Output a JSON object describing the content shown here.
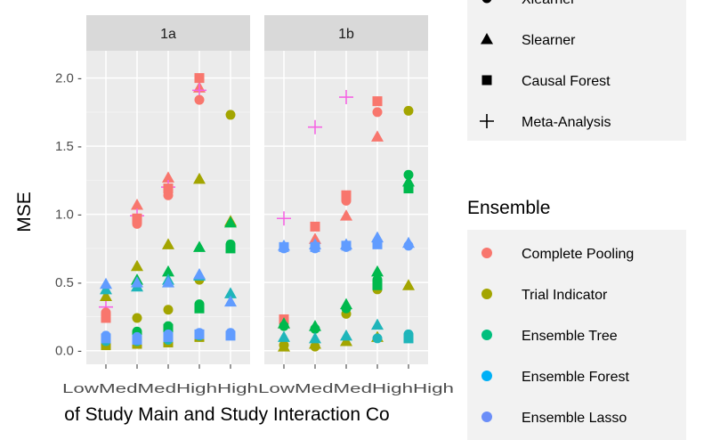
{
  "chart_data": {
    "type": "scatter",
    "ylabel": "MSE",
    "xlabel": "of Study Main and Study Interaction Co",
    "ylim": [
      -0.1,
      2.2
    ],
    "yticks": [
      0.0,
      0.5,
      1.0,
      1.5,
      2.0
    ],
    "ytick_labels": [
      "0.0 -",
      "0.5 -",
      "1.0 -",
      "1.5 -",
      "2.0 -"
    ],
    "x_tick_labels": [
      "Low",
      "Med",
      "Med",
      "High",
      "High",
      "Low",
      "Med",
      "Med",
      "High",
      "High"
    ],
    "x_tick_text": "LowMedMedHighHighLowMedMedHighHigh",
    "grid": true,
    "panels": [
      {
        "name": "1a",
        "points": [
          {
            "x": 1,
            "y": 0.32,
            "color": "Complete Pooling",
            "shape": "Meta-Analysis"
          },
          {
            "x": 1,
            "y": 0.28,
            "color": "Complete Pooling",
            "shape": "Xlearner"
          },
          {
            "x": 1,
            "y": 0.24,
            "color": "Complete Pooling",
            "shape": "Causal Forest"
          },
          {
            "x": 1,
            "y": 0.4,
            "color": "Trial Indicator",
            "shape": "Slearner"
          },
          {
            "x": 1,
            "y": 0.04,
            "color": "Trial Indicator",
            "shape": "Causal Forest"
          },
          {
            "x": 1,
            "y": 0.45,
            "color": "Ensemble Forest",
            "shape": "Slearner"
          },
          {
            "x": 1,
            "y": 0.07,
            "color": "Ensemble Forest",
            "shape": "Xlearner"
          },
          {
            "x": 1,
            "y": 0.49,
            "color": "Ensemble Lasso",
            "shape": "Slearner"
          },
          {
            "x": 1,
            "y": 0.11,
            "color": "Ensemble Lasso",
            "shape": "Xlearner"
          },
          {
            "x": 1,
            "y": 0.09,
            "color": "Ensemble Lasso",
            "shape": "Causal Forest"
          },
          {
            "x": 2,
            "y": 1.07,
            "color": "Complete Pooling",
            "shape": "Slearner"
          },
          {
            "x": 2,
            "y": 0.99,
            "color": "Complete Pooling",
            "shape": "Meta-Analysis"
          },
          {
            "x": 2,
            "y": 0.97,
            "color": "Complete Pooling",
            "shape": "Causal Forest"
          },
          {
            "x": 2,
            "y": 0.93,
            "color": "Complete Pooling",
            "shape": "Xlearner"
          },
          {
            "x": 2,
            "y": 0.62,
            "color": "Trial Indicator",
            "shape": "Slearner"
          },
          {
            "x": 2,
            "y": 0.24,
            "color": "Trial Indicator",
            "shape": "Xlearner"
          },
          {
            "x": 2,
            "y": 0.05,
            "color": "Trial Indicator",
            "shape": "Causal Forest"
          },
          {
            "x": 2,
            "y": 0.52,
            "color": "Ensemble Tree",
            "shape": "Slearner"
          },
          {
            "x": 2,
            "y": 0.14,
            "color": "Ensemble Tree",
            "shape": "Xlearner"
          },
          {
            "x": 2,
            "y": 0.11,
            "color": "Ensemble Tree",
            "shape": "Causal Forest"
          },
          {
            "x": 2,
            "y": 0.47,
            "color": "Ensemble Forest",
            "shape": "Slearner"
          },
          {
            "x": 2,
            "y": 0.07,
            "color": "Ensemble Forest",
            "shape": "Xlearner"
          },
          {
            "x": 2,
            "y": 0.5,
            "color": "Ensemble Lasso",
            "shape": "Slearner"
          },
          {
            "x": 2,
            "y": 0.1,
            "color": "Ensemble Lasso",
            "shape": "Xlearner"
          },
          {
            "x": 2,
            "y": 0.08,
            "color": "Ensemble Lasso",
            "shape": "Causal Forest"
          },
          {
            "x": 3,
            "y": 1.27,
            "color": "Complete Pooling",
            "shape": "Slearner"
          },
          {
            "x": 3,
            "y": 1.2,
            "color": "Complete Pooling",
            "shape": "Meta-Analysis"
          },
          {
            "x": 3,
            "y": 1.19,
            "color": "Complete Pooling",
            "shape": "Causal Forest"
          },
          {
            "x": 3,
            "y": 1.14,
            "color": "Complete Pooling",
            "shape": "Xlearner"
          },
          {
            "x": 3,
            "y": 0.78,
            "color": "Trial Indicator",
            "shape": "Slearner"
          },
          {
            "x": 3,
            "y": 0.3,
            "color": "Trial Indicator",
            "shape": "Xlearner"
          },
          {
            "x": 3,
            "y": 0.06,
            "color": "Trial Indicator",
            "shape": "Causal Forest"
          },
          {
            "x": 3,
            "y": 0.58,
            "color": "Ensemble Tree",
            "shape": "Slearner"
          },
          {
            "x": 3,
            "y": 0.18,
            "color": "Ensemble Tree",
            "shape": "Xlearner"
          },
          {
            "x": 3,
            "y": 0.16,
            "color": "Ensemble Tree",
            "shape": "Causal Forest"
          },
          {
            "x": 3,
            "y": 0.52,
            "color": "Ensemble Forest",
            "shape": "Slearner"
          },
          {
            "x": 3,
            "y": 0.08,
            "color": "Ensemble Forest",
            "shape": "Xlearner"
          },
          {
            "x": 3,
            "y": 0.5,
            "color": "Ensemble Lasso",
            "shape": "Slearner"
          },
          {
            "x": 3,
            "y": 0.12,
            "color": "Ensemble Lasso",
            "shape": "Xlearner"
          },
          {
            "x": 3,
            "y": 0.1,
            "color": "Ensemble Lasso",
            "shape": "Causal Forest"
          },
          {
            "x": 4,
            "y": 2.0,
            "color": "Complete Pooling",
            "shape": "Causal Forest"
          },
          {
            "x": 4,
            "y": 1.93,
            "color": "Complete Pooling",
            "shape": "Slearner"
          },
          {
            "x": 4,
            "y": 1.91,
            "color": "Complete Pooling",
            "shape": "Meta-Analysis"
          },
          {
            "x": 4,
            "y": 1.84,
            "color": "Complete Pooling",
            "shape": "Xlearner"
          },
          {
            "x": 4,
            "y": 1.26,
            "color": "Trial Indicator",
            "shape": "Slearner"
          },
          {
            "x": 4,
            "y": 0.52,
            "color": "Trial Indicator",
            "shape": "Xlearner"
          },
          {
            "x": 4,
            "y": 0.1,
            "color": "Trial Indicator",
            "shape": "Causal Forest"
          },
          {
            "x": 4,
            "y": 0.76,
            "color": "Ensemble Tree",
            "shape": "Slearner"
          },
          {
            "x": 4,
            "y": 0.34,
            "color": "Ensemble Tree",
            "shape": "Xlearner"
          },
          {
            "x": 4,
            "y": 0.31,
            "color": "Ensemble Tree",
            "shape": "Causal Forest"
          },
          {
            "x": 4,
            "y": 0.55,
            "color": "Ensemble Forest",
            "shape": "Slearner"
          },
          {
            "x": 4,
            "y": 0.11,
            "color": "Ensemble Forest",
            "shape": "Xlearner"
          },
          {
            "x": 4,
            "y": 0.56,
            "color": "Ensemble Lasso",
            "shape": "Slearner"
          },
          {
            "x": 4,
            "y": 0.13,
            "color": "Ensemble Lasso",
            "shape": "Xlearner"
          },
          {
            "x": 4,
            "y": 0.12,
            "color": "Ensemble Lasso",
            "shape": "Causal Forest"
          },
          {
            "x": 5,
            "y": 1.73,
            "color": "Trial Indicator",
            "shape": "Xlearner"
          },
          {
            "x": 5,
            "y": 0.95,
            "color": "Trial Indicator",
            "shape": "Slearner"
          },
          {
            "x": 5,
            "y": 0.94,
            "color": "Ensemble Tree",
            "shape": "Slearner"
          },
          {
            "x": 5,
            "y": 0.78,
            "color": "Ensemble Tree",
            "shape": "Xlearner"
          },
          {
            "x": 5,
            "y": 0.75,
            "color": "Ensemble Tree",
            "shape": "Causal Forest"
          },
          {
            "x": 5,
            "y": 0.42,
            "color": "Ensemble Forest",
            "shape": "Slearner"
          },
          {
            "x": 5,
            "y": 0.12,
            "color": "Ensemble Forest",
            "shape": "Xlearner"
          },
          {
            "x": 5,
            "y": 0.36,
            "color": "Ensemble Lasso",
            "shape": "Slearner"
          },
          {
            "x": 5,
            "y": 0.13,
            "color": "Ensemble Lasso",
            "shape": "Xlearner"
          },
          {
            "x": 5,
            "y": 0.11,
            "color": "Ensemble Lasso",
            "shape": "Causal Forest"
          }
        ]
      },
      {
        "name": "1b",
        "points": [
          {
            "x": 1,
            "y": 0.97,
            "color": "Complete Pooling",
            "shape": "Meta-Analysis"
          },
          {
            "x": 1,
            "y": 0.23,
            "color": "Complete Pooling",
            "shape": "Causal Forest"
          },
          {
            "x": 1,
            "y": 0.2,
            "color": "Complete Pooling",
            "shape": "Slearner"
          },
          {
            "x": 1,
            "y": 0.03,
            "color": "Trial Indicator",
            "shape": "Slearner"
          },
          {
            "x": 1,
            "y": 0.04,
            "color": "Trial Indicator",
            "shape": "Xlearner"
          },
          {
            "x": 1,
            "y": 0.2,
            "color": "Ensemble Tree",
            "shape": "Slearner"
          },
          {
            "x": 1,
            "y": 0.18,
            "color": "Ensemble Tree",
            "shape": "Xlearner"
          },
          {
            "x": 1,
            "y": 0.1,
            "color": "Ensemble Forest",
            "shape": "Slearner"
          },
          {
            "x": 1,
            "y": 0.77,
            "color": "Ensemble Lasso",
            "shape": "Slearner"
          },
          {
            "x": 1,
            "y": 0.75,
            "color": "Ensemble Lasso",
            "shape": "Xlearner"
          },
          {
            "x": 1,
            "y": 0.76,
            "color": "Ensemble Lasso",
            "shape": "Causal Forest"
          },
          {
            "x": 2,
            "y": 1.64,
            "color": "Complete Pooling",
            "shape": "Meta-Analysis"
          },
          {
            "x": 2,
            "y": 0.91,
            "color": "Complete Pooling",
            "shape": "Causal Forest"
          },
          {
            "x": 2,
            "y": 0.82,
            "color": "Complete Pooling",
            "shape": "Slearner"
          },
          {
            "x": 2,
            "y": 0.79,
            "color": "Complete Pooling",
            "shape": "Xlearner"
          },
          {
            "x": 2,
            "y": 0.05,
            "color": "Trial Indicator",
            "shape": "Slearner"
          },
          {
            "x": 2,
            "y": 0.03,
            "color": "Trial Indicator",
            "shape": "Xlearner"
          },
          {
            "x": 2,
            "y": 0.18,
            "color": "Ensemble Tree",
            "shape": "Slearner"
          },
          {
            "x": 2,
            "y": 0.16,
            "color": "Ensemble Tree",
            "shape": "Xlearner"
          },
          {
            "x": 2,
            "y": 0.09,
            "color": "Ensemble Forest",
            "shape": "Slearner"
          },
          {
            "x": 2,
            "y": 0.78,
            "color": "Ensemble Lasso",
            "shape": "Slearner"
          },
          {
            "x": 2,
            "y": 0.75,
            "color": "Ensemble Lasso",
            "shape": "Xlearner"
          },
          {
            "x": 2,
            "y": 0.76,
            "color": "Ensemble Lasso",
            "shape": "Causal Forest"
          },
          {
            "x": 3,
            "y": 1.86,
            "color": "Complete Pooling",
            "shape": "Meta-Analysis"
          },
          {
            "x": 3,
            "y": 1.14,
            "color": "Complete Pooling",
            "shape": "Causal Forest"
          },
          {
            "x": 3,
            "y": 1.1,
            "color": "Complete Pooling",
            "shape": "Xlearner"
          },
          {
            "x": 3,
            "y": 0.99,
            "color": "Complete Pooling",
            "shape": "Slearner"
          },
          {
            "x": 3,
            "y": 0.27,
            "color": "Trial Indicator",
            "shape": "Xlearner"
          },
          {
            "x": 3,
            "y": 0.07,
            "color": "Trial Indicator",
            "shape": "Slearner"
          },
          {
            "x": 3,
            "y": 0.34,
            "color": "Ensemble Tree",
            "shape": "Slearner"
          },
          {
            "x": 3,
            "y": 0.31,
            "color": "Ensemble Tree",
            "shape": "Xlearner"
          },
          {
            "x": 3,
            "y": 0.11,
            "color": "Ensemble Forest",
            "shape": "Slearner"
          },
          {
            "x": 3,
            "y": 0.78,
            "color": "Ensemble Lasso",
            "shape": "Slearner"
          },
          {
            "x": 3,
            "y": 0.76,
            "color": "Ensemble Lasso",
            "shape": "Xlearner"
          },
          {
            "x": 3,
            "y": 0.77,
            "color": "Ensemble Lasso",
            "shape": "Causal Forest"
          },
          {
            "x": 4,
            "y": 1.83,
            "color": "Complete Pooling",
            "shape": "Causal Forest"
          },
          {
            "x": 4,
            "y": 1.75,
            "color": "Complete Pooling",
            "shape": "Xlearner"
          },
          {
            "x": 4,
            "y": 1.57,
            "color": "Complete Pooling",
            "shape": "Slearner"
          },
          {
            "x": 4,
            "y": 0.45,
            "color": "Trial Indicator",
            "shape": "Xlearner"
          },
          {
            "x": 4,
            "y": 0.1,
            "color": "Trial Indicator",
            "shape": "Slearner"
          },
          {
            "x": 4,
            "y": 0.58,
            "color": "Ensemble Tree",
            "shape": "Slearner"
          },
          {
            "x": 4,
            "y": 0.52,
            "color": "Ensemble Tree",
            "shape": "Xlearner"
          },
          {
            "x": 4,
            "y": 0.48,
            "color": "Ensemble Tree",
            "shape": "Causal Forest"
          },
          {
            "x": 4,
            "y": 0.19,
            "color": "Ensemble Forest",
            "shape": "Slearner"
          },
          {
            "x": 4,
            "y": 0.09,
            "color": "Ensemble Forest",
            "shape": "Xlearner"
          },
          {
            "x": 4,
            "y": 0.83,
            "color": "Ensemble Lasso",
            "shape": "Slearner"
          },
          {
            "x": 4,
            "y": 0.79,
            "color": "Ensemble Lasso",
            "shape": "Xlearner"
          },
          {
            "x": 4,
            "y": 0.78,
            "color": "Ensemble Lasso",
            "shape": "Causal Forest"
          },
          {
            "x": 5,
            "y": 1.76,
            "color": "Trial Indicator",
            "shape": "Xlearner"
          },
          {
            "x": 5,
            "y": 0.48,
            "color": "Trial Indicator",
            "shape": "Slearner"
          },
          {
            "x": 5,
            "y": 1.29,
            "color": "Ensemble Tree",
            "shape": "Xlearner"
          },
          {
            "x": 5,
            "y": 1.24,
            "color": "Ensemble Tree",
            "shape": "Slearner"
          },
          {
            "x": 5,
            "y": 1.19,
            "color": "Ensemble Tree",
            "shape": "Causal Forest"
          },
          {
            "x": 5,
            "y": 0.12,
            "color": "Ensemble Forest",
            "shape": "Xlearner"
          },
          {
            "x": 5,
            "y": 0.09,
            "color": "Ensemble Forest",
            "shape": "Causal Forest"
          },
          {
            "x": 5,
            "y": 0.79,
            "color": "Ensemble Lasso",
            "shape": "Slearner"
          },
          {
            "x": 5,
            "y": 0.77,
            "color": "Ensemble Lasso",
            "shape": "Xlearner"
          }
        ]
      }
    ]
  },
  "legend_shape": {
    "items": [
      {
        "label": "Xlearner",
        "shape": "circle"
      },
      {
        "label": "Slearner",
        "shape": "triangle"
      },
      {
        "label": "Causal Forest",
        "shape": "square"
      },
      {
        "label": "Meta-Analysis",
        "shape": "plus"
      }
    ]
  },
  "legend_color": {
    "title": "Ensemble",
    "items": [
      {
        "label": "Complete Pooling",
        "color": "#F8766D"
      },
      {
        "label": "Trial Indicator",
        "color": "#A3A500"
      },
      {
        "label": "Ensemble Tree",
        "color": "#00BF7D"
      },
      {
        "label": "Ensemble Forest",
        "color": "#00B0F6"
      },
      {
        "label": "Ensemble Lasso",
        "color": "#6B8EF8"
      }
    ]
  },
  "colors": {
    "Complete Pooling": "#F8766D",
    "Trial Indicator": "#A3A500",
    "Ensemble Tree": "#00B94D",
    "Ensemble Forest": "#1FB5BA",
    "Ensemble Lasso": "#619CFF",
    "Meta-Analysis": "#F564E3",
    "panel_bg": "#EBEBEB",
    "strip_bg": "#D9D9D9"
  }
}
